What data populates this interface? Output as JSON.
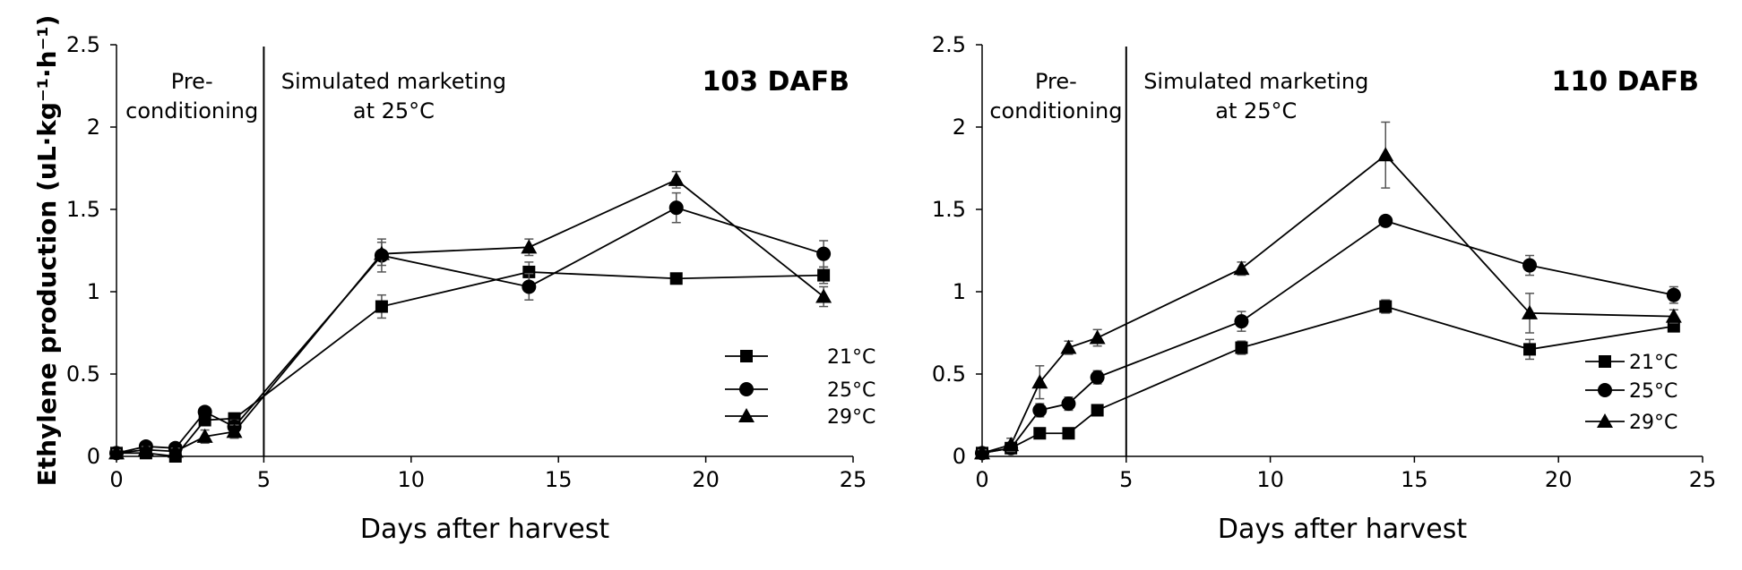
{
  "chart_data": [
    {
      "type": "line",
      "title": "103 DAFB",
      "xlabel": "Days after harvest",
      "ylabel": "Ethylene production (uL·kg⁻¹·h⁻¹)",
      "xlim": [
        0,
        25
      ],
      "ylim": [
        0,
        2.5
      ],
      "xticks": [
        0,
        5,
        10,
        15,
        20,
        25
      ],
      "yticks": [
        0,
        0.5,
        1,
        1.5,
        2,
        2.5
      ],
      "xtick_labels": [
        "0",
        "5",
        "10",
        "15",
        "20",
        "25"
      ],
      "ytick_labels": [
        "0",
        "0.5",
        "1",
        "1.5",
        "2",
        "2.5"
      ],
      "divider_x": 5,
      "region_labels": [
        {
          "lines": [
            "Pre-",
            "conditioning"
          ]
        },
        {
          "lines": [
            "Simulated marketing",
            "at 25°C"
          ]
        }
      ],
      "legend_position": "lower-right",
      "series": [
        {
          "name": "21°C",
          "marker": "square",
          "x": [
            0,
            1,
            2,
            3,
            4,
            9,
            14,
            19,
            24
          ],
          "y": [
            0.02,
            0.02,
            0.0,
            0.22,
            0.23,
            0.91,
            1.12,
            1.08,
            1.1
          ],
          "err": [
            0.02,
            0.02,
            0.01,
            0.03,
            0.03,
            0.07,
            0.06,
            0.03,
            0.05
          ]
        },
        {
          "name": "25°C",
          "marker": "circle",
          "x": [
            0,
            1,
            2,
            3,
            4,
            9,
            14,
            19,
            24
          ],
          "y": [
            0.02,
            0.06,
            0.05,
            0.27,
            0.18,
            1.22,
            1.03,
            1.51,
            1.23
          ],
          "err": [
            0.02,
            0.02,
            0.02,
            0.03,
            0.04,
            0.1,
            0.08,
            0.09,
            0.08
          ]
        },
        {
          "name": "29°C",
          "marker": "triangle",
          "x": [
            0,
            1,
            2,
            3,
            4,
            9,
            14,
            19,
            24
          ],
          "y": [
            0.02,
            0.04,
            0.03,
            0.12,
            0.15,
            1.23,
            1.27,
            1.68,
            0.97
          ],
          "err": [
            0.02,
            0.02,
            0.02,
            0.04,
            0.04,
            0.07,
            0.05,
            0.05,
            0.06
          ]
        }
      ]
    },
    {
      "type": "line",
      "title": "110 DAFB",
      "xlabel": "Days after harvest",
      "ylabel": "",
      "xlim": [
        0,
        25
      ],
      "ylim": [
        0,
        2.5
      ],
      "xticks": [
        0,
        5,
        10,
        15,
        20,
        25
      ],
      "yticks": [
        0,
        0.5,
        1,
        1.5,
        2,
        2.5
      ],
      "xtick_labels": [
        "0",
        "5",
        "10",
        "15",
        "20",
        "25"
      ],
      "ytick_labels": [
        "0",
        "0.5",
        "1",
        "1.5",
        "2",
        "2.5"
      ],
      "divider_x": 5,
      "region_labels": [
        {
          "lines": [
            "Pre-",
            "conditioning"
          ]
        },
        {
          "lines": [
            "Simulated marketing",
            "at 25°C"
          ]
        }
      ],
      "legend_position": "lower-right",
      "series": [
        {
          "name": "21°C",
          "marker": "square",
          "x": [
            0,
            1,
            2,
            3,
            4,
            9,
            14,
            19,
            24
          ],
          "y": [
            0.02,
            0.05,
            0.14,
            0.14,
            0.28,
            0.66,
            0.91,
            0.65,
            0.79
          ],
          "err": [
            0.02,
            0.02,
            0.02,
            0.02,
            0.03,
            0.04,
            0.04,
            0.06,
            0.03
          ]
        },
        {
          "name": "25°C",
          "marker": "circle",
          "x": [
            0,
            1,
            2,
            3,
            4,
            9,
            14,
            19,
            24
          ],
          "y": [
            0.02,
            0.05,
            0.28,
            0.32,
            0.48,
            0.82,
            1.43,
            1.16,
            0.98
          ],
          "err": [
            0.02,
            0.03,
            0.04,
            0.04,
            0.04,
            0.06,
            0.03,
            0.06,
            0.05
          ]
        },
        {
          "name": "29°C",
          "marker": "triangle",
          "x": [
            0,
            1,
            2,
            3,
            4,
            9,
            14,
            19,
            24
          ],
          "y": [
            0.02,
            0.07,
            0.45,
            0.66,
            0.72,
            1.14,
            1.83,
            0.87,
            0.85
          ],
          "err": [
            0.02,
            0.04,
            0.1,
            0.04,
            0.05,
            0.04,
            0.2,
            0.12,
            0.04
          ]
        }
      ]
    }
  ]
}
